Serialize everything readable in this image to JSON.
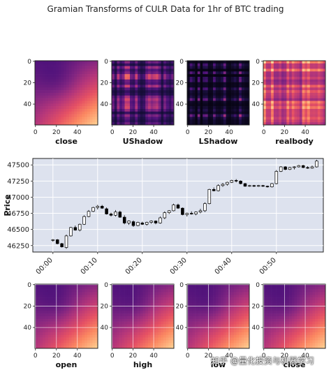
{
  "title": "Gramian Transforms of CULR Data for 1hr of BTC trading",
  "watermark": "知乎 @量化投资与机器学习",
  "colors": {
    "candle_up": "#ffffff",
    "candle_down": "#000000",
    "price_panel_bg": "#dde2ee",
    "heatmap_colormap": "magma"
  },
  "chart_data": [
    {
      "type": "heatmap",
      "row": "top",
      "title": "close",
      "xticks": [
        "0",
        "20",
        "40"
      ],
      "yticks": [
        "0",
        "20",
        "40"
      ],
      "size": 60,
      "texture": "smooth",
      "overlay_grid": false
    },
    {
      "type": "heatmap",
      "row": "top",
      "title": "UShadow",
      "xticks": [
        "0",
        "20",
        "40"
      ],
      "yticks": [
        "0",
        "20",
        "40"
      ],
      "size": 60,
      "texture": "stripes-dark",
      "overlay_grid": false
    },
    {
      "type": "heatmap",
      "row": "top",
      "title": "LShadow",
      "xticks": [
        "0",
        "20",
        "40"
      ],
      "yticks": [
        "0",
        "20",
        "40"
      ],
      "size": 60,
      "texture": "stripes-darker",
      "overlay_grid": false
    },
    {
      "type": "heatmap",
      "row": "top",
      "title": "realbody",
      "xticks": [
        "0",
        "20",
        "40"
      ],
      "yticks": [
        "0",
        "20",
        "40"
      ],
      "size": 60,
      "texture": "stripes-bright",
      "overlay_grid": false
    },
    {
      "type": "candlestick",
      "ylabel": "Price",
      "yticks": [
        "46250",
        "46500",
        "46750",
        "47000",
        "47250",
        "47500"
      ],
      "xticks": [
        "00:00",
        "00:10",
        "00:20",
        "00:30",
        "00:40",
        "00:50"
      ],
      "ylim": [
        46150,
        47600
      ],
      "xlim_minutes": [
        -4.5,
        60.5
      ],
      "grid": true,
      "candles": [
        {
          "t": 0,
          "o": 46330,
          "h": 46350,
          "l": 46310,
          "c": 46340
        },
        {
          "t": 1,
          "o": 46340,
          "h": 46350,
          "l": 46270,
          "c": 46280
        },
        {
          "t": 2,
          "o": 46280,
          "h": 46290,
          "l": 46220,
          "c": 46230
        },
        {
          "t": 3,
          "o": 46220,
          "h": 46420,
          "l": 46200,
          "c": 46400
        },
        {
          "t": 4,
          "o": 46400,
          "h": 46540,
          "l": 46390,
          "c": 46530
        },
        {
          "t": 5,
          "o": 46530,
          "h": 46560,
          "l": 46480,
          "c": 46490
        },
        {
          "t": 6,
          "o": 46490,
          "h": 46590,
          "l": 46470,
          "c": 46580
        },
        {
          "t": 7,
          "o": 46580,
          "h": 46720,
          "l": 46570,
          "c": 46700
        },
        {
          "t": 8,
          "o": 46700,
          "h": 46800,
          "l": 46690,
          "c": 46780
        },
        {
          "t": 9,
          "o": 46780,
          "h": 46850,
          "l": 46770,
          "c": 46840
        },
        {
          "t": 10,
          "o": 46840,
          "h": 46880,
          "l": 46810,
          "c": 46860
        },
        {
          "t": 11,
          "o": 46860,
          "h": 46880,
          "l": 46820,
          "c": 46830
        },
        {
          "t": 12,
          "o": 46820,
          "h": 46840,
          "l": 46730,
          "c": 46740
        },
        {
          "t": 13,
          "o": 46740,
          "h": 46760,
          "l": 46700,
          "c": 46720
        },
        {
          "t": 14,
          "o": 46720,
          "h": 46800,
          "l": 46700,
          "c": 46770
        },
        {
          "t": 15,
          "o": 46770,
          "h": 46790,
          "l": 46680,
          "c": 46690
        },
        {
          "t": 16,
          "o": 46690,
          "h": 46720,
          "l": 46580,
          "c": 46600
        },
        {
          "t": 17,
          "o": 46600,
          "h": 46640,
          "l": 46570,
          "c": 46630
        },
        {
          "t": 18,
          "o": 46620,
          "h": 46640,
          "l": 46540,
          "c": 46560
        },
        {
          "t": 19,
          "o": 46560,
          "h": 46620,
          "l": 46550,
          "c": 46610
        },
        {
          "t": 20,
          "o": 46600,
          "h": 46620,
          "l": 46570,
          "c": 46580
        },
        {
          "t": 21,
          "o": 46580,
          "h": 46620,
          "l": 46560,
          "c": 46610
        },
        {
          "t": 22,
          "o": 46610,
          "h": 46640,
          "l": 46590,
          "c": 46630
        },
        {
          "t": 23,
          "o": 46630,
          "h": 46640,
          "l": 46580,
          "c": 46600
        },
        {
          "t": 24,
          "o": 46600,
          "h": 46700,
          "l": 46590,
          "c": 46680
        },
        {
          "t": 25,
          "o": 46680,
          "h": 46780,
          "l": 46660,
          "c": 46760
        },
        {
          "t": 26,
          "o": 46760,
          "h": 46800,
          "l": 46740,
          "c": 46790
        },
        {
          "t": 27,
          "o": 46790,
          "h": 46900,
          "l": 46780,
          "c": 46880
        },
        {
          "t": 28,
          "o": 46880,
          "h": 46900,
          "l": 46820,
          "c": 46830
        },
        {
          "t": 29,
          "o": 46830,
          "h": 46840,
          "l": 46720,
          "c": 46730
        },
        {
          "t": 30,
          "o": 46730,
          "h": 46760,
          "l": 46700,
          "c": 46750
        },
        {
          "t": 31,
          "o": 46750,
          "h": 46780,
          "l": 46730,
          "c": 46740
        },
        {
          "t": 32,
          "o": 46740,
          "h": 46780,
          "l": 46720,
          "c": 46770
        },
        {
          "t": 33,
          "o": 46770,
          "h": 46820,
          "l": 46750,
          "c": 46790
        },
        {
          "t": 34,
          "o": 46790,
          "h": 46920,
          "l": 46770,
          "c": 46900
        },
        {
          "t": 35,
          "o": 46900,
          "h": 47130,
          "l": 46890,
          "c": 47120
        },
        {
          "t": 36,
          "o": 47120,
          "h": 47150,
          "l": 47090,
          "c": 47100
        },
        {
          "t": 37,
          "o": 47100,
          "h": 47200,
          "l": 47090,
          "c": 47180
        },
        {
          "t": 38,
          "o": 47180,
          "h": 47220,
          "l": 47160,
          "c": 47200
        },
        {
          "t": 39,
          "o": 47200,
          "h": 47240,
          "l": 47180,
          "c": 47230
        },
        {
          "t": 40,
          "o": 47230,
          "h": 47270,
          "l": 47220,
          "c": 47260
        },
        {
          "t": 41,
          "o": 47260,
          "h": 47280,
          "l": 47230,
          "c": 47250
        },
        {
          "t": 42,
          "o": 47250,
          "h": 47260,
          "l": 47200,
          "c": 47210
        },
        {
          "t": 43,
          "o": 47210,
          "h": 47220,
          "l": 47160,
          "c": 47170
        },
        {
          "t": 44,
          "o": 47170,
          "h": 47190,
          "l": 47160,
          "c": 47180
        },
        {
          "t": 45,
          "o": 47180,
          "h": 47190,
          "l": 47160,
          "c": 47170
        },
        {
          "t": 46,
          "o": 47170,
          "h": 47190,
          "l": 47160,
          "c": 47180
        },
        {
          "t": 47,
          "o": 47180,
          "h": 47190,
          "l": 47160,
          "c": 47170
        },
        {
          "t": 48,
          "o": 47170,
          "h": 47180,
          "l": 47150,
          "c": 47160
        },
        {
          "t": 49,
          "o": 47160,
          "h": 47220,
          "l": 47150,
          "c": 47210
        },
        {
          "t": 50,
          "o": 47210,
          "h": 47420,
          "l": 47200,
          "c": 47400
        },
        {
          "t": 51,
          "o": 47400,
          "h": 47480,
          "l": 47390,
          "c": 47470
        },
        {
          "t": 52,
          "o": 47470,
          "h": 47480,
          "l": 47420,
          "c": 47430
        },
        {
          "t": 53,
          "o": 47430,
          "h": 47470,
          "l": 47420,
          "c": 47460
        },
        {
          "t": 54,
          "o": 47460,
          "h": 47480,
          "l": 47430,
          "c": 47470
        },
        {
          "t": 55,
          "o": 47470,
          "h": 47500,
          "l": 47460,
          "c": 47490
        },
        {
          "t": 56,
          "o": 47490,
          "h": 47500,
          "l": 47450,
          "c": 47460
        },
        {
          "t": 57,
          "o": 47460,
          "h": 47480,
          "l": 47440,
          "c": 47450
        },
        {
          "t": 58,
          "o": 47450,
          "h": 47490,
          "l": 47440,
          "c": 47470
        },
        {
          "t": 59,
          "o": 47470,
          "h": 47580,
          "l": 47460,
          "c": 47560
        }
      ]
    },
    {
      "type": "heatmap",
      "row": "bottom",
      "title": "open",
      "xticks": [
        "0",
        "20",
        "40"
      ],
      "yticks": [
        "0",
        "20",
        "40"
      ],
      "size": 60,
      "texture": "smooth",
      "overlay_grid": true
    },
    {
      "type": "heatmap",
      "row": "bottom",
      "title": "high",
      "xticks": [
        "0",
        "20",
        "40"
      ],
      "yticks": [
        "0",
        "20",
        "40"
      ],
      "size": 60,
      "texture": "smooth",
      "overlay_grid": true
    },
    {
      "type": "heatmap",
      "row": "bottom",
      "title": "low",
      "xticks": [
        "0",
        "20",
        "40"
      ],
      "yticks": [
        "0",
        "20",
        "40"
      ],
      "size": 60,
      "texture": "smooth",
      "overlay_grid": true
    },
    {
      "type": "heatmap",
      "row": "bottom",
      "title": "close",
      "xticks": [
        "0",
        "20",
        "40"
      ],
      "yticks": [
        "0",
        "20",
        "40"
      ],
      "size": 60,
      "texture": "smooth",
      "overlay_grid": true
    }
  ]
}
